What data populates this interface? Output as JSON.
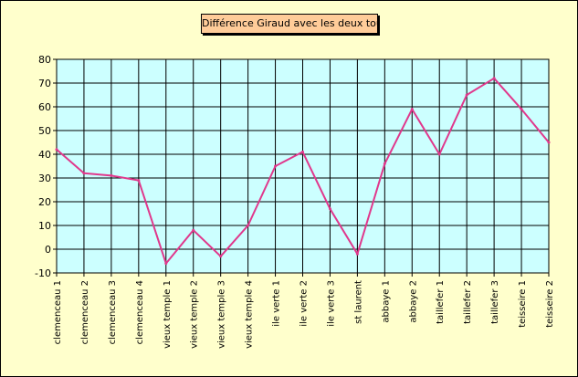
{
  "chart_data": {
    "type": "line",
    "title": "Différence Giraud avec les deux tours",
    "xlabel": "",
    "ylabel": "",
    "categories": [
      "clemenceau 1",
      "clemenceau 2",
      "clemenceau 3",
      "clemenceau 4",
      "vieux temple 1",
      "vieux temple 2",
      "vieux temple 3",
      "vieux temple 4",
      "ile verte 1",
      "ile verte 2",
      "ile verte 3",
      "st laurent",
      "abbaye 1",
      "abbaye 2",
      "taillefer 1",
      "taillefer 2",
      "taillefer 3",
      "teisseire 1",
      "teisseire 2"
    ],
    "series": [
      {
        "values": [
          42,
          32,
          31,
          29,
          -6,
          8,
          -3,
          10,
          35,
          41,
          17,
          -2,
          36,
          59,
          40,
          65,
          72,
          59,
          45
        ]
      }
    ],
    "ylim": [
      -10,
      80
    ],
    "yticks": [
      -10,
      0,
      10,
      20,
      30,
      40,
      50,
      60,
      70,
      80
    ],
    "grid": true,
    "legend": "none",
    "colors": {
      "line": "#e0388c",
      "plot_bg": "#ccffff",
      "page_bg": "#ffffcc",
      "title_bg": "#ffcc99"
    }
  }
}
